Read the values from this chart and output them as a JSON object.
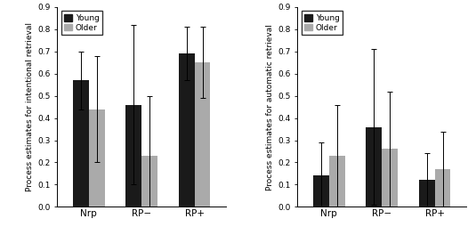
{
  "left": {
    "ylabel": "Process estimates for intentional retrieval",
    "categories": [
      "Nrp",
      "RP−",
      "RP+"
    ],
    "young_means": [
      0.57,
      0.46,
      0.69
    ],
    "older_means": [
      0.44,
      0.23,
      0.65
    ],
    "young_errors": [
      0.13,
      0.36,
      0.12
    ],
    "older_errors": [
      0.24,
      0.27,
      0.16
    ]
  },
  "right": {
    "ylabel": "Process estimates for automatic retrieval",
    "categories": [
      "Nrp",
      "RP−",
      "RP+"
    ],
    "young_means": [
      0.14,
      0.36,
      0.12
    ],
    "older_means": [
      0.23,
      0.26,
      0.17
    ],
    "young_errors": [
      0.15,
      0.35,
      0.12
    ],
    "older_errors": [
      0.23,
      0.26,
      0.17
    ]
  },
  "young_color": "#1a1a1a",
  "older_color": "#aaaaaa",
  "bar_width": 0.3,
  "ylim": [
    0,
    0.9
  ],
  "yticks": [
    0,
    0.1,
    0.2,
    0.3,
    0.4,
    0.5,
    0.6,
    0.7,
    0.8,
    0.9
  ],
  "legend_labels": [
    "Young",
    "Older"
  ],
  "capsize": 2
}
